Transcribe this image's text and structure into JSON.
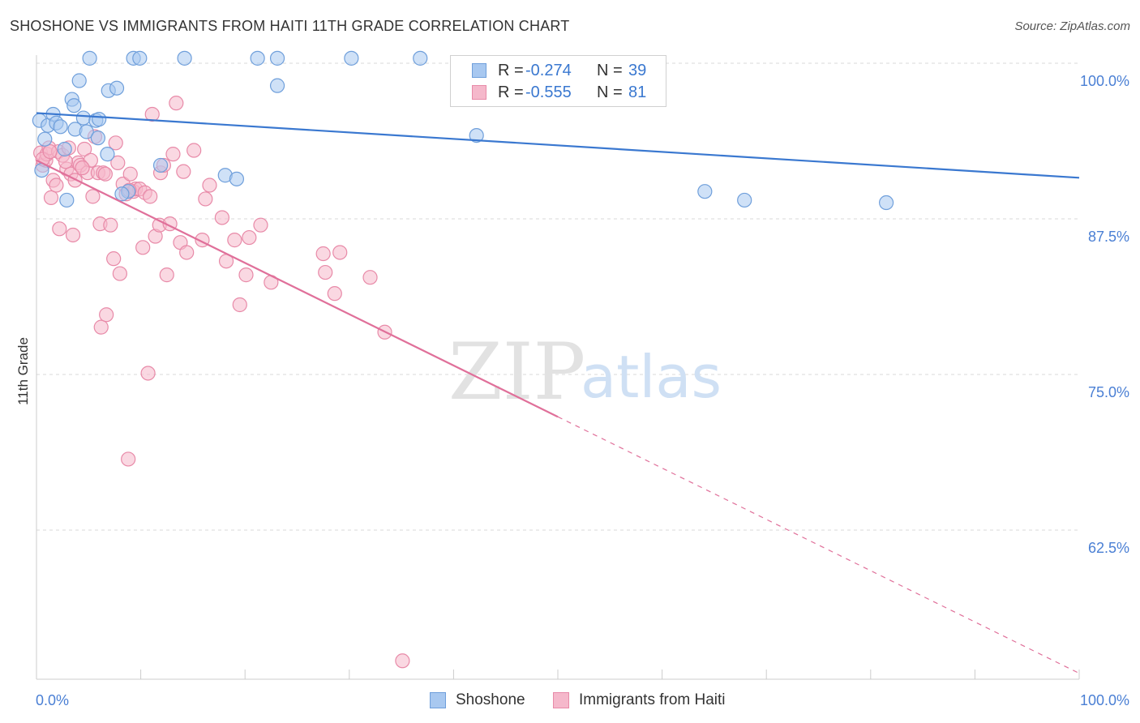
{
  "header": {
    "title": "SHOSHONE VS IMMIGRANTS FROM HAITI 11TH GRADE CORRELATION CHART",
    "source": "Source: ZipAtlas.com"
  },
  "watermark": {
    "zip": "ZIP",
    "atlas": "atlas"
  },
  "legend": {
    "rows": [
      {
        "r_label": "R =",
        "r_value": "-0.274",
        "n_label": "N =",
        "n_value": "39"
      },
      {
        "r_label": "R =",
        "r_value": "-0.555",
        "n_label": "N =",
        "n_value": "81"
      }
    ]
  },
  "bottom_legend": {
    "series1": "Shoshone",
    "series2": "Immigrants from Haiti"
  },
  "colors": {
    "blue_fill": "#a8c8f0",
    "blue_stroke": "#6f9fdb",
    "blue_line": "#3a78d0",
    "pink_fill": "#f5b8cb",
    "pink_stroke": "#e88aa8",
    "pink_line": "#e0709a",
    "value_text": "#3a78d0",
    "grid": "#d9d9d9"
  },
  "chart_data": {
    "type": "scatter",
    "title": "SHOSHONE VS IMMIGRANTS FROM HAITI 11TH GRADE CORRELATION CHART",
    "xlabel": "",
    "ylabel": "11th Grade",
    "xlim": [
      0,
      100
    ],
    "ylim": [
      50,
      102
    ],
    "x_tick_labels": {
      "left": "0.0%",
      "right": "100.0%"
    },
    "y_ticks": [
      {
        "value": 100,
        "label": "100.0%"
      },
      {
        "value": 87.5,
        "label": "87.5%"
      },
      {
        "value": 75,
        "label": "75.0%"
      },
      {
        "value": 62.5,
        "label": "62.5%"
      }
    ],
    "series": [
      {
        "name": "Shoshone",
        "r": -0.274,
        "n": 39,
        "trend": {
          "x0": 0,
          "y0": 96.0,
          "x1": 100,
          "y1": 90.8,
          "solid_to": 100
        },
        "points": [
          [
            0.3,
            95.4
          ],
          [
            1.1,
            95.0
          ],
          [
            0.5,
            91.4
          ],
          [
            0.8,
            93.9
          ],
          [
            1.6,
            95.9
          ],
          [
            1.9,
            95.2
          ],
          [
            2.3,
            94.9
          ],
          [
            2.7,
            93.1
          ],
          [
            2.9,
            89.0
          ],
          [
            3.4,
            97.1
          ],
          [
            3.6,
            96.6
          ],
          [
            3.7,
            94.7
          ],
          [
            4.1,
            98.6
          ],
          [
            4.5,
            95.6
          ],
          [
            4.8,
            94.5
          ],
          [
            5.1,
            100.4
          ],
          [
            5.7,
            95.4
          ],
          [
            5.9,
            94.0
          ],
          [
            6.0,
            95.5
          ],
          [
            6.8,
            92.7
          ],
          [
            6.9,
            97.8
          ],
          [
            7.7,
            98.0
          ],
          [
            8.8,
            89.7
          ],
          [
            9.3,
            100.4
          ],
          [
            9.9,
            100.4
          ],
          [
            11.9,
            91.8
          ],
          [
            14.2,
            100.4
          ],
          [
            18.1,
            91.0
          ],
          [
            19.2,
            90.7
          ],
          [
            21.2,
            100.4
          ],
          [
            23.1,
            100.4
          ],
          [
            23.1,
            98.2
          ],
          [
            30.2,
            100.4
          ],
          [
            36.8,
            100.4
          ],
          [
            42.2,
            94.2
          ],
          [
            64.1,
            89.7
          ],
          [
            67.9,
            89.0
          ],
          [
            81.5,
            88.8
          ],
          [
            8.2,
            89.5
          ]
        ]
      },
      {
        "name": "Immigrants from Haiti",
        "r": -0.555,
        "n": 81,
        "trend": {
          "x0": 0,
          "y0": 92.2,
          "x1": 100,
          "y1": 51.0,
          "solid_to": 50
        },
        "points": [
          [
            0.4,
            92.8
          ],
          [
            0.6,
            91.8
          ],
          [
            0.9,
            92.2
          ],
          [
            1.0,
            92.7
          ],
          [
            1.2,
            93.2
          ],
          [
            1.4,
            89.2
          ],
          [
            1.6,
            90.6
          ],
          [
            1.9,
            90.2
          ],
          [
            2.1,
            92.9
          ],
          [
            2.2,
            86.7
          ],
          [
            2.5,
            92.6
          ],
          [
            2.9,
            91.5
          ],
          [
            3.1,
            93.2
          ],
          [
            3.3,
            91.1
          ],
          [
            3.5,
            86.2
          ],
          [
            3.7,
            90.6
          ],
          [
            4.0,
            92.0
          ],
          [
            4.2,
            91.8
          ],
          [
            4.6,
            93.1
          ],
          [
            4.9,
            91.2
          ],
          [
            5.2,
            92.2
          ],
          [
            5.4,
            89.3
          ],
          [
            5.6,
            94.1
          ],
          [
            5.9,
            91.2
          ],
          [
            6.1,
            87.1
          ],
          [
            6.2,
            78.8
          ],
          [
            6.4,
            91.2
          ],
          [
            6.7,
            79.8
          ],
          [
            7.1,
            87.0
          ],
          [
            7.4,
            84.3
          ],
          [
            7.6,
            93.6
          ],
          [
            7.8,
            92.0
          ],
          [
            8.0,
            83.1
          ],
          [
            8.3,
            90.3
          ],
          [
            8.6,
            89.5
          ],
          [
            8.8,
            68.2
          ],
          [
            9.0,
            91.1
          ],
          [
            9.3,
            89.7
          ],
          [
            9.5,
            89.9
          ],
          [
            9.9,
            89.9
          ],
          [
            10.2,
            85.2
          ],
          [
            10.4,
            89.6
          ],
          [
            10.7,
            75.1
          ],
          [
            10.9,
            89.3
          ],
          [
            11.1,
            95.9
          ],
          [
            11.4,
            86.1
          ],
          [
            11.8,
            87.0
          ],
          [
            11.9,
            91.2
          ],
          [
            12.2,
            91.8
          ],
          [
            12.5,
            83.0
          ],
          [
            12.8,
            87.1
          ],
          [
            13.1,
            92.7
          ],
          [
            13.4,
            96.8
          ],
          [
            13.8,
            85.6
          ],
          [
            14.1,
            91.3
          ],
          [
            14.4,
            84.8
          ],
          [
            15.1,
            93.0
          ],
          [
            15.9,
            85.8
          ],
          [
            16.2,
            89.1
          ],
          [
            16.6,
            90.2
          ],
          [
            17.8,
            87.6
          ],
          [
            18.2,
            84.1
          ],
          [
            19.0,
            85.8
          ],
          [
            19.5,
            80.6
          ],
          [
            20.1,
            83.0
          ],
          [
            20.4,
            86.0
          ],
          [
            21.5,
            87.0
          ],
          [
            22.5,
            82.4
          ],
          [
            27.5,
            84.7
          ],
          [
            27.7,
            83.2
          ],
          [
            28.6,
            81.5
          ],
          [
            29.1,
            84.8
          ],
          [
            32.0,
            82.8
          ],
          [
            33.4,
            78.4
          ],
          [
            35.1,
            52.0
          ],
          [
            0.6,
            92.3
          ],
          [
            1.3,
            92.9
          ],
          [
            2.8,
            92.1
          ],
          [
            4.4,
            91.6
          ],
          [
            6.6,
            91.1
          ],
          [
            8.9,
            89.8
          ]
        ]
      }
    ]
  }
}
